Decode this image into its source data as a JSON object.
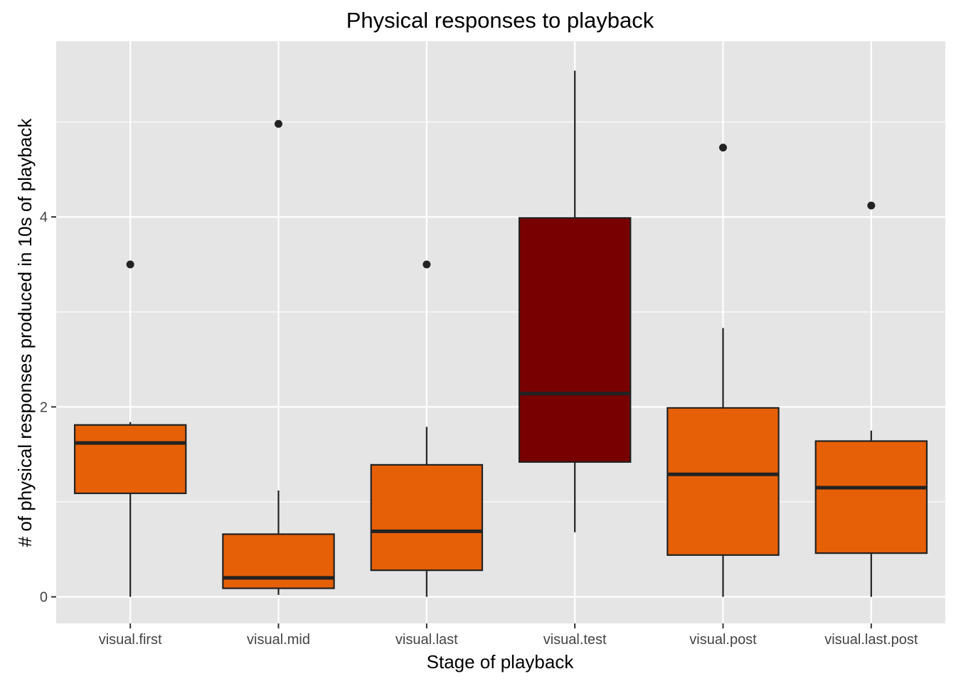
{
  "chart_data": {
    "type": "boxplot",
    "title": "Physical responses to playback",
    "xlabel": "Stage of playback",
    "ylabel": "# of physical responses produced in 10s of playback",
    "ylim": [
      -0.28,
      5.85
    ],
    "yticks": [
      0,
      2,
      4
    ],
    "grid": true,
    "legend": "none",
    "categories": [
      "visual.first",
      "visual.mid",
      "visual.last",
      "visual.test",
      "visual.post",
      "visual.last.post"
    ],
    "boxes": [
      {
        "category": "visual.first",
        "whisker_low": 0.0,
        "q1": 1.09,
        "median": 1.62,
        "q3": 1.81,
        "whisker_high": 1.84,
        "outliers": [
          3.5
        ]
      },
      {
        "category": "visual.mid",
        "whisker_low": 0.02,
        "q1": 0.09,
        "median": 0.2,
        "q3": 0.66,
        "whisker_high": 1.12,
        "outliers": [
          4.98
        ]
      },
      {
        "category": "visual.last",
        "whisker_low": 0.0,
        "q1": 0.28,
        "median": 0.69,
        "q3": 1.39,
        "whisker_high": 1.79,
        "outliers": [
          3.5
        ]
      },
      {
        "category": "visual.test",
        "whisker_low": 0.68,
        "q1": 1.42,
        "median": 2.14,
        "q3": 3.99,
        "whisker_high": 5.54,
        "outliers": []
      },
      {
        "category": "visual.post",
        "whisker_low": 0.0,
        "q1": 0.44,
        "median": 1.29,
        "q3": 1.99,
        "whisker_high": 2.83,
        "outliers": [
          4.73
        ]
      },
      {
        "category": "visual.last.post",
        "whisker_low": 0.0,
        "q1": 0.46,
        "median": 1.15,
        "q3": 1.64,
        "whisker_high": 1.75,
        "outliers": [
          4.12
        ]
      }
    ],
    "colors": {
      "panel_bg": "#e5e5e5",
      "grid": "#ffffff",
      "box_fill_default": "#e66008",
      "box_fill_highlight": "#780000",
      "box_stroke": "#222222",
      "text": "#000000",
      "tick_text": "#444444"
    },
    "highlight_category": "visual.test"
  }
}
